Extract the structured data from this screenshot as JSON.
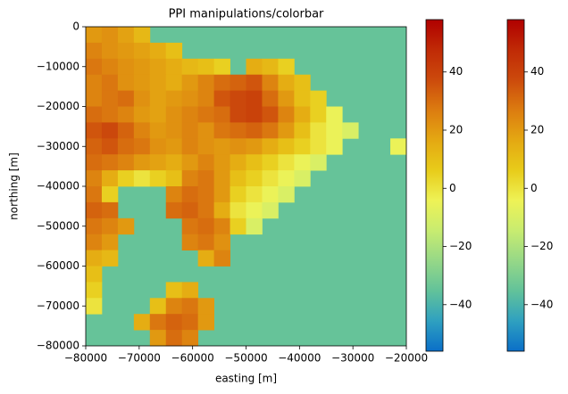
{
  "chart_data": {
    "type": "heatmap",
    "title": "PPI manipulations/colorbar",
    "x_label": "easting [m]",
    "y_label": "northing [m]",
    "xlim": [
      -80000,
      -20000
    ],
    "ylim": [
      -80000,
      0
    ],
    "xticks": [
      {
        "value": -80000,
        "label": "−80000"
      },
      {
        "value": -70000,
        "label": "−70000"
      },
      {
        "value": -60000,
        "label": "−60000"
      },
      {
        "value": -50000,
        "label": "−50000"
      },
      {
        "value": -40000,
        "label": "−40000"
      },
      {
        "value": -30000,
        "label": "−30000"
      },
      {
        "value": -20000,
        "label": "−20000"
      }
    ],
    "yticks": [
      0,
      {
        "value": -10000,
        "label": "−10000"
      },
      {
        "value": -20000,
        "label": "−20000"
      },
      {
        "value": -30000,
        "label": "−30000"
      },
      {
        "value": -40000,
        "label": "−40000"
      },
      {
        "value": -50000,
        "label": "−50000"
      },
      {
        "value": -60000,
        "label": "−60000"
      },
      {
        "value": -70000,
        "label": "−70000"
      },
      {
        "value": -80000,
        "label": "−80000"
      }
    ],
    "nodata_color": "#66c399",
    "colormap": [
      "#0a6fc8",
      "#2fa0c0",
      "#62c29a",
      "#96d887",
      "#c8ec70",
      "#eef256",
      "#e8cc1a",
      "#e4a812",
      "#dc7c10",
      "#cc4a0c",
      "#c02a06",
      "#b00000"
    ],
    "z": [
      [
        20,
        22,
        18,
        12,
        null,
        null,
        null,
        null,
        null,
        null,
        null,
        null,
        null,
        null,
        null,
        null,
        null,
        null,
        null,
        null
      ],
      [
        25,
        22,
        20,
        18,
        15,
        10,
        null,
        null,
        null,
        null,
        null,
        null,
        null,
        null,
        null,
        null,
        null,
        null,
        null,
        null
      ],
      [
        28,
        25,
        22,
        20,
        18,
        15,
        12,
        10,
        5,
        null,
        15,
        12,
        5,
        null,
        null,
        null,
        null,
        null,
        null,
        null
      ],
      [
        25,
        28,
        22,
        20,
        18,
        15,
        20,
        25,
        30,
        32,
        35,
        25,
        15,
        10,
        null,
        null,
        null,
        null,
        null,
        null
      ],
      [
        25,
        28,
        30,
        22,
        18,
        20,
        22,
        25,
        35,
        38,
        40,
        30,
        20,
        10,
        5,
        null,
        null,
        null,
        null,
        null
      ],
      [
        30,
        28,
        25,
        20,
        18,
        22,
        25,
        28,
        30,
        38,
        40,
        35,
        25,
        15,
        5,
        -5,
        null,
        null,
        null,
        null
      ],
      [
        35,
        38,
        32,
        25,
        20,
        22,
        25,
        22,
        28,
        30,
        32,
        28,
        20,
        10,
        0,
        -5,
        -10,
        null,
        null,
        null
      ],
      [
        32,
        35,
        30,
        28,
        22,
        20,
        25,
        22,
        20,
        22,
        20,
        15,
        10,
        5,
        0,
        -5,
        null,
        null,
        null,
        -5
      ],
      [
        30,
        28,
        25,
        20,
        18,
        15,
        20,
        25,
        20,
        15,
        10,
        5,
        0,
        -5,
        -10,
        null,
        null,
        null,
        null,
        null
      ],
      [
        25,
        15,
        5,
        0,
        5,
        10,
        25,
        28,
        20,
        10,
        5,
        0,
        -5,
        -10,
        null,
        null,
        null,
        null,
        null,
        null
      ],
      [
        28,
        5,
        null,
        null,
        null,
        25,
        30,
        28,
        20,
        5,
        0,
        -5,
        -10,
        null,
        null,
        null,
        null,
        null,
        null,
        null
      ],
      [
        32,
        30,
        null,
        null,
        null,
        30,
        32,
        28,
        15,
        0,
        -5,
        -10,
        null,
        null,
        null,
        null,
        null,
        null,
        null,
        null
      ],
      [
        28,
        25,
        20,
        null,
        null,
        null,
        28,
        30,
        25,
        5,
        -10,
        null,
        null,
        null,
        null,
        null,
        null,
        null,
        null,
        null
      ],
      [
        25,
        20,
        null,
        null,
        null,
        null,
        25,
        28,
        22,
        null,
        null,
        null,
        null,
        null,
        null,
        null,
        null,
        null,
        null,
        null
      ],
      [
        15,
        12,
        null,
        null,
        null,
        null,
        null,
        15,
        25,
        null,
        null,
        null,
        null,
        null,
        null,
        null,
        null,
        null,
        null,
        null
      ],
      [
        10,
        null,
        null,
        null,
        null,
        null,
        null,
        null,
        null,
        null,
        null,
        null,
        null,
        null,
        null,
        null,
        null,
        null,
        null,
        null
      ],
      [
        5,
        null,
        null,
        null,
        null,
        10,
        15,
        null,
        null,
        null,
        null,
        null,
        null,
        null,
        null,
        null,
        null,
        null,
        null,
        null
      ],
      [
        0,
        null,
        null,
        null,
        10,
        25,
        28,
        20,
        null,
        null,
        null,
        null,
        null,
        null,
        null,
        null,
        null,
        null,
        null,
        null
      ],
      [
        null,
        null,
        null,
        15,
        28,
        32,
        30,
        20,
        null,
        null,
        null,
        null,
        null,
        null,
        null,
        null,
        null,
        null,
        null,
        null
      ],
      [
        null,
        null,
        null,
        null,
        20,
        30,
        25,
        null,
        null,
        null,
        null,
        null,
        null,
        null,
        null,
        null,
        null,
        null,
        null,
        null
      ]
    ],
    "colorbars": [
      {
        "lim": [
          -56,
          58
        ],
        "ticks": [
          40,
          20,
          0,
          {
            "value": -20,
            "label": "−20"
          },
          {
            "value": -40,
            "label": "−40"
          }
        ]
      },
      {
        "lim": [
          -56,
          58
        ],
        "ticks": [
          40,
          20,
          0,
          {
            "value": -20,
            "label": "−20"
          },
          {
            "value": -40,
            "label": "−40"
          }
        ]
      }
    ]
  }
}
